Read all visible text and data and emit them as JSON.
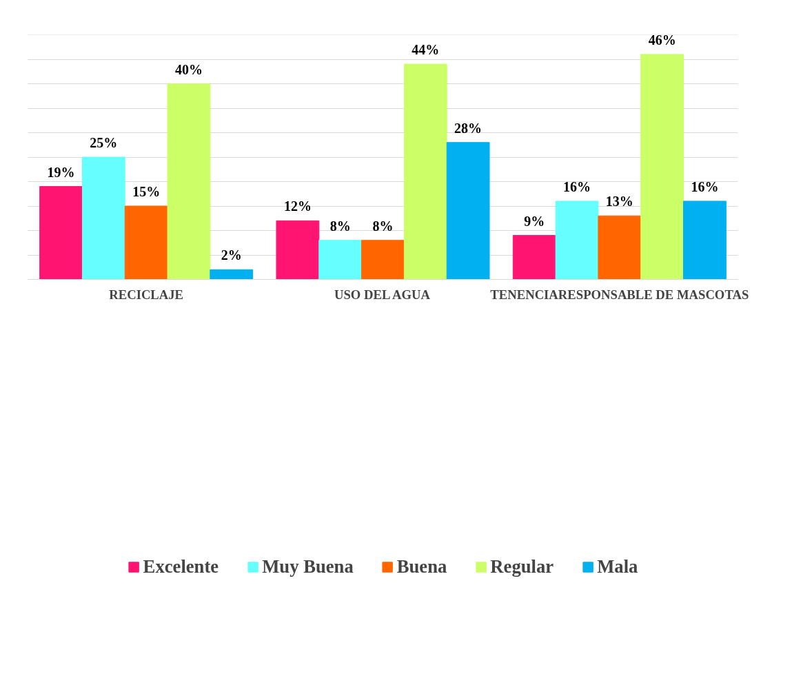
{
  "chart_data": {
    "type": "bar",
    "categories": [
      "RECICLAJE",
      "USO DEL AGUA",
      "TENENCIARESPONSABLE DE MASCOTAS"
    ],
    "series": [
      {
        "name": "Excelente",
        "color": "#ff1472",
        "values": [
          19,
          12,
          9
        ],
        "value_labels": [
          "19%",
          "12%",
          "9%"
        ]
      },
      {
        "name": "Muy Buena",
        "color": "#66ffff",
        "values": [
          25,
          8,
          16
        ],
        "value_labels": [
          "25%",
          "8%",
          "16%"
        ]
      },
      {
        "name": "Buena",
        "color": "#ff6600",
        "values": [
          15,
          8,
          13
        ],
        "value_labels": [
          "15%",
          "8%",
          "13%"
        ]
      },
      {
        "name": "Regular",
        "color": "#ccff66",
        "values": [
          40,
          44,
          46
        ],
        "value_labels": [
          "40%",
          "44%",
          "46%"
        ]
      },
      {
        "name": "Mala",
        "color": "#00b0f0",
        "values": [
          2,
          28,
          16
        ],
        "value_labels": [
          "2%",
          "28%",
          "16%"
        ]
      }
    ],
    "ylim": [
      0,
      50
    ],
    "yticks": [
      {
        "value": 0,
        "label": null
      },
      {
        "value": 5,
        "label": null
      },
      {
        "value": 10,
        "label": null
      },
      {
        "value": 15,
        "label": null
      },
      {
        "value": 20,
        "label": null
      },
      {
        "value": 25,
        "label": null
      },
      {
        "value": 30,
        "label": null
      },
      {
        "value": 35,
        "label": null
      },
      {
        "value": 40,
        "label": null
      },
      {
        "value": 45,
        "label": null
      },
      {
        "value": 50,
        "label": null
      }
    ],
    "grid": "y",
    "legend": "bottom",
    "tick_labels": "x"
  }
}
